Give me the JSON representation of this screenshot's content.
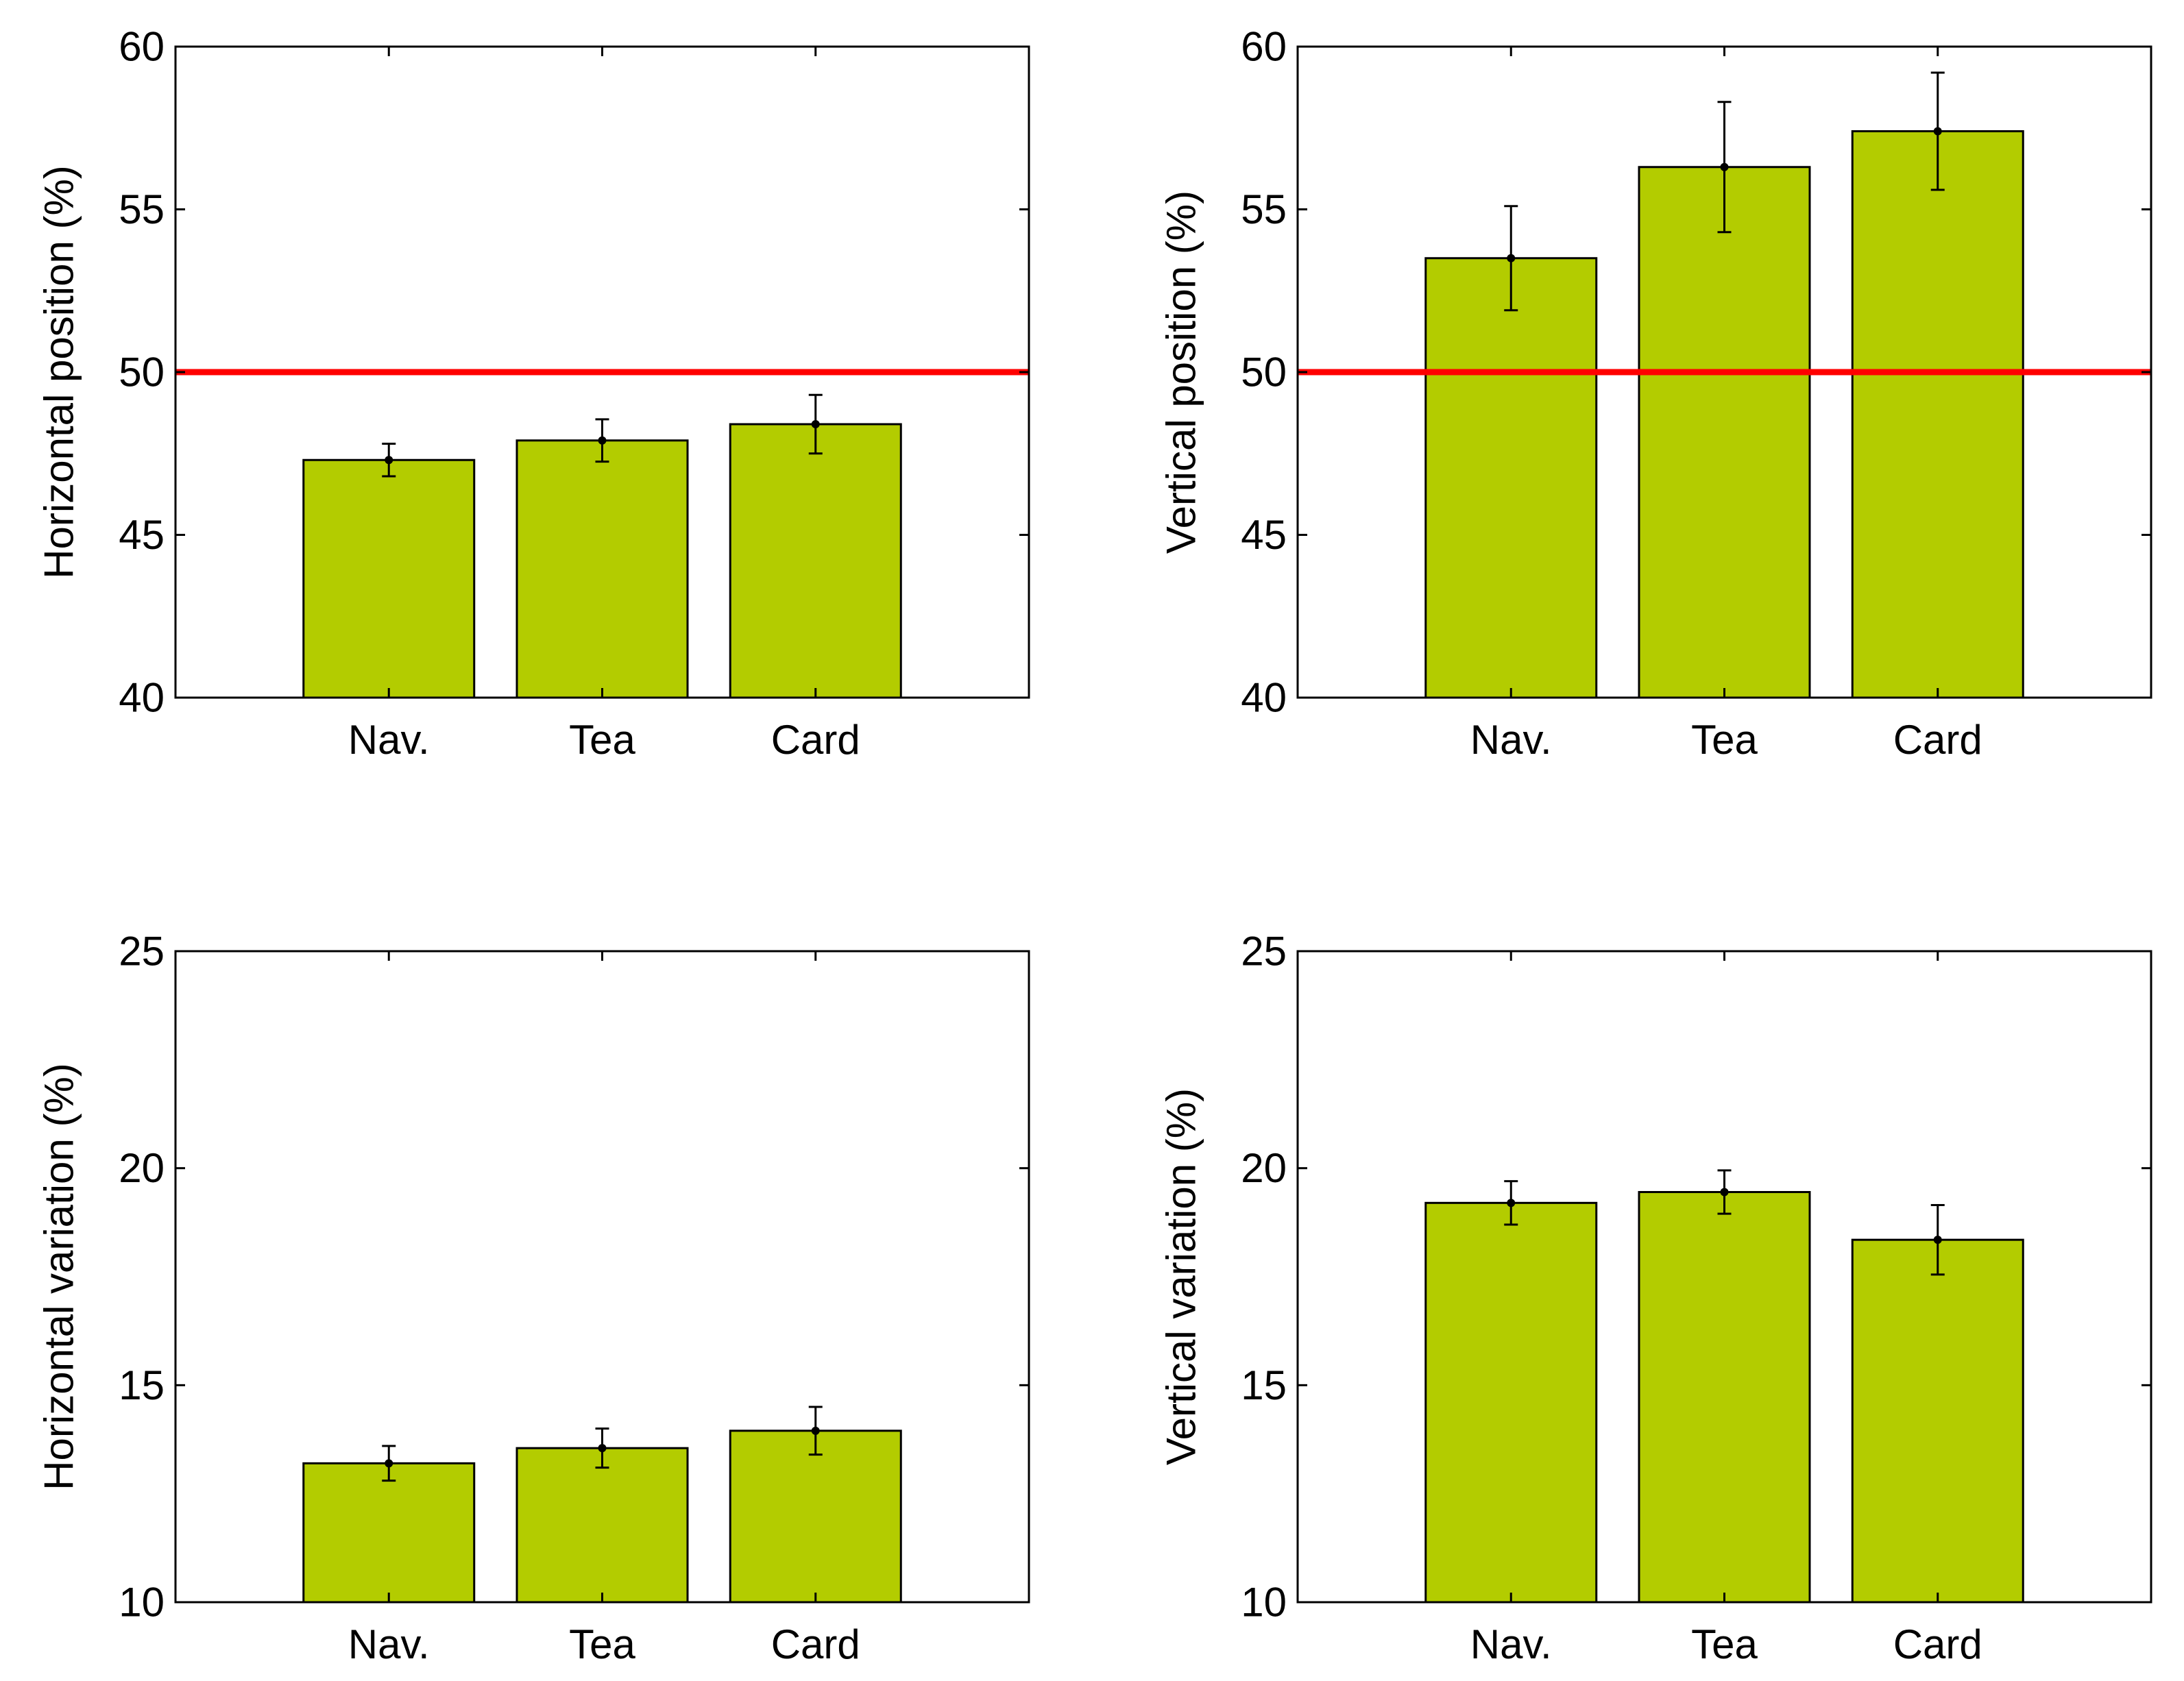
{
  "chart_data": [
    {
      "type": "bar",
      "title": "",
      "categories": [
        "Nav.",
        "Tea",
        "Card"
      ],
      "values": [
        47.3,
        47.9,
        48.4
      ],
      "errors": [
        0.5,
        0.65,
        0.9
      ],
      "xlabel": "",
      "ylabel": "Horizontal position (%)",
      "ylim": [
        40,
        60
      ],
      "yticks": [
        "40",
        "45",
        "50",
        "55",
        "60"
      ],
      "reference_line": 50,
      "grid": false
    },
    {
      "type": "bar",
      "title": "",
      "categories": [
        "Nav.",
        "Tea",
        "Card"
      ],
      "values": [
        53.5,
        56.3,
        57.4
      ],
      "errors": [
        1.6,
        2.0,
        1.8
      ],
      "xlabel": "",
      "ylabel": "Vertical position (%)",
      "ylim": [
        40,
        60
      ],
      "yticks": [
        "40",
        "45",
        "50",
        "55",
        "60"
      ],
      "reference_line": 50,
      "grid": false
    },
    {
      "type": "bar",
      "title": "",
      "categories": [
        "Nav.",
        "Tea",
        "Card"
      ],
      "values": [
        13.2,
        13.55,
        13.95
      ],
      "errors": [
        0.4,
        0.45,
        0.55
      ],
      "xlabel": "",
      "ylabel": "Horizontal variation (%)",
      "ylim": [
        10,
        25
      ],
      "yticks": [
        "10",
        "15",
        "20",
        "25"
      ],
      "reference_line": null,
      "grid": false
    },
    {
      "type": "bar",
      "title": "",
      "categories": [
        "Nav.",
        "Tea",
        "Card"
      ],
      "values": [
        19.2,
        19.45,
        18.35
      ],
      "errors": [
        0.5,
        0.5,
        0.8
      ],
      "xlabel": "",
      "ylabel": "Vertical variation (%)",
      "ylim": [
        10,
        25
      ],
      "yticks": [
        "10",
        "15",
        "20",
        "25"
      ],
      "reference_line": null,
      "grid": false
    }
  ],
  "colors": {
    "bar_fill": "#b3cc00",
    "bar_edge": "#000000",
    "reference_line": "#ff0000",
    "axes": "#000000"
  }
}
